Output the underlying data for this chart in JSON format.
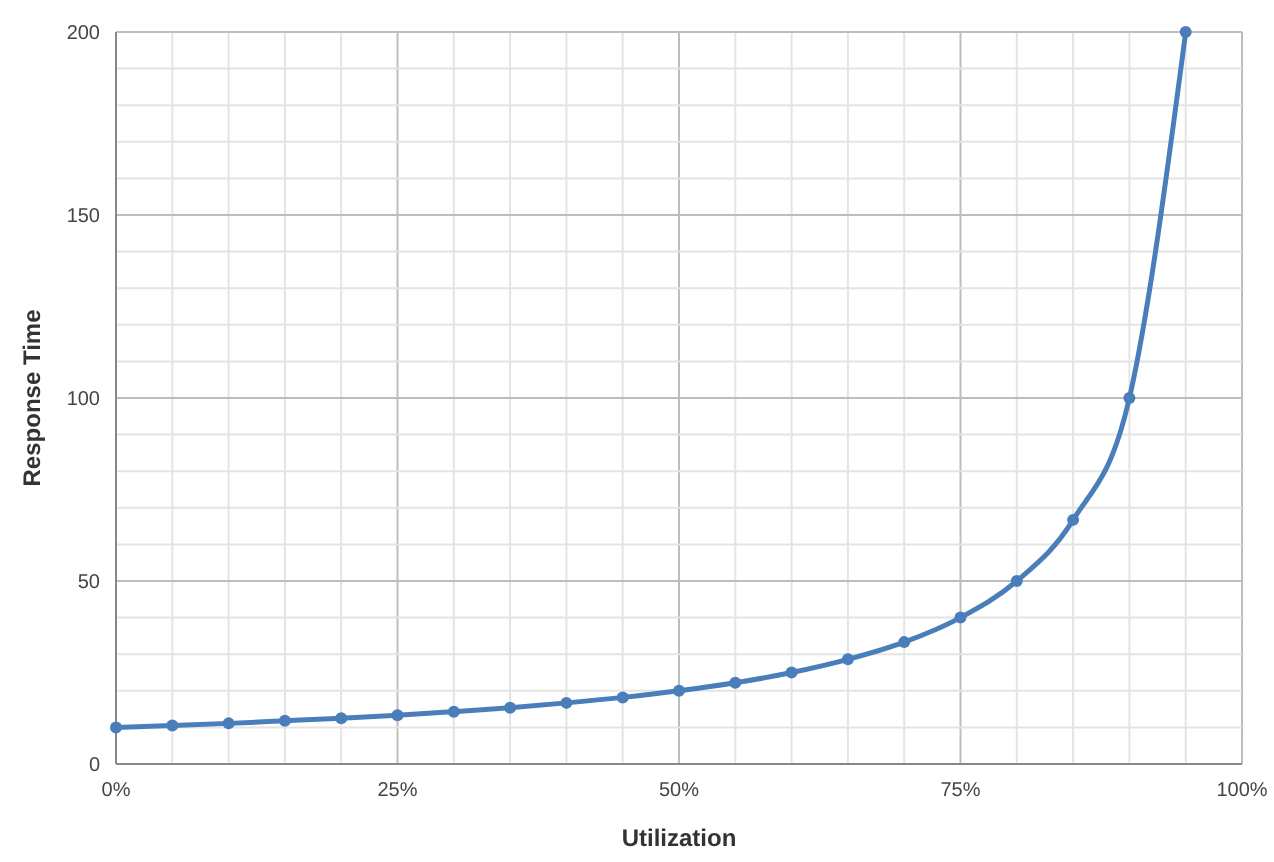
{
  "chart_data": {
    "type": "line",
    "xlabel": "Utilization",
    "ylabel": "Response Time",
    "x": [
      0,
      5,
      10,
      15,
      20,
      25,
      30,
      35,
      40,
      45,
      50,
      55,
      60,
      65,
      70,
      75,
      80,
      85,
      90,
      95
    ],
    "series": [
      {
        "color": "#4a7ebb",
        "values": [
          10,
          10.5,
          11.1,
          11.8,
          12.5,
          13.3,
          14.3,
          15.4,
          16.7,
          18.2,
          20,
          22.2,
          25,
          28.6,
          33.3,
          40,
          50,
          66.7,
          100,
          200
        ]
      }
    ],
    "xlim": [
      0,
      100
    ],
    "xticks": [
      {
        "value": 0,
        "label": "0%"
      },
      {
        "value": 5,
        "label": null
      },
      {
        "value": 10,
        "label": null
      },
      {
        "value": 15,
        "label": null
      },
      {
        "value": 20,
        "label": null
      },
      {
        "value": 25,
        "label": "25%"
      },
      {
        "value": 30,
        "label": null
      },
      {
        "value": 35,
        "label": null
      },
      {
        "value": 40,
        "label": null
      },
      {
        "value": 45,
        "label": null
      },
      {
        "value": 50,
        "label": "50%"
      },
      {
        "value": 55,
        "label": null
      },
      {
        "value": 60,
        "label": null
      },
      {
        "value": 65,
        "label": null
      },
      {
        "value": 70,
        "label": null
      },
      {
        "value": 75,
        "label": "75%"
      },
      {
        "value": 80,
        "label": null
      },
      {
        "value": 85,
        "label": null
      },
      {
        "value": 90,
        "label": null
      },
      {
        "value": 95,
        "label": null
      },
      {
        "value": 100,
        "label": "100%"
      }
    ],
    "ylim": [
      0,
      200
    ],
    "yticks": [
      0,
      {
        "value": 10,
        "label": null
      },
      {
        "value": 20,
        "label": null
      },
      {
        "value": 30,
        "label": null
      },
      {
        "value": 40,
        "label": null
      },
      50,
      {
        "value": 60,
        "label": null
      },
      {
        "value": 70,
        "label": null
      },
      {
        "value": 80,
        "label": null
      },
      {
        "value": 90,
        "label": null
      },
      100,
      {
        "value": 110,
        "label": null
      },
      {
        "value": 120,
        "label": null
      },
      {
        "value": 130,
        "label": null
      },
      {
        "value": 140,
        "label": null
      },
      150,
      {
        "value": 160,
        "label": null
      },
      {
        "value": 170,
        "label": null
      },
      {
        "value": 180,
        "label": null
      },
      {
        "value": 190,
        "label": null
      },
      200
    ],
    "grid": true,
    "marker": "circle",
    "line_style": "solid"
  }
}
